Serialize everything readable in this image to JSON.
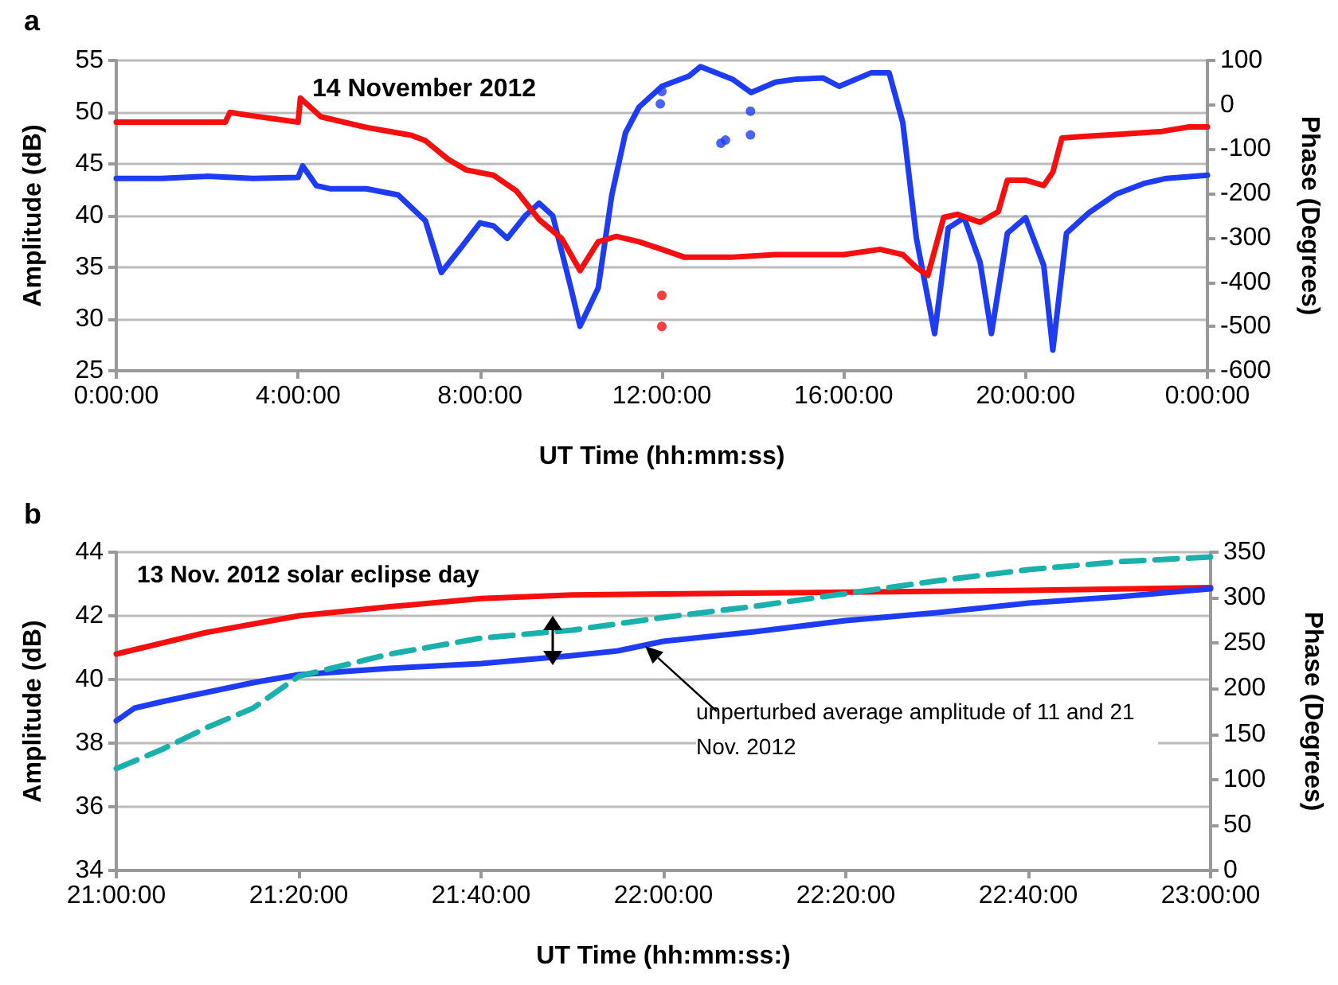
{
  "chart_data": [
    {
      "type": "line",
      "title": "a",
      "annotations": [
        "14 November 2012"
      ],
      "xlabel": "UT Time (hh:mm:ss)",
      "ylabel": "Amplitude (dB)",
      "y2label": "Phase (Degrees)",
      "grid": "y",
      "marker": "none",
      "line_style": "solid",
      "xlim": [
        "2012-11-14T00:00",
        "2012-11-15T00:00"
      ],
      "xticks": [
        {
          "value": "2012-11-14T00:00",
          "label": "0:00:00"
        },
        {
          "value": "2012-11-14T04:00",
          "label": "4:00:00"
        },
        {
          "value": "2012-11-14T08:00",
          "label": "8:00:00"
        },
        {
          "value": "2012-11-14T12:00",
          "label": "12:00:00"
        },
        {
          "value": "2012-11-14T16:00",
          "label": "16:00:00"
        },
        {
          "value": "2012-11-14T20:00",
          "label": "20:00:00"
        },
        {
          "value": "2012-11-15T00:00",
          "label": "0:00:00"
        }
      ],
      "ylim": [
        25,
        55
      ],
      "yticks": [
        25,
        30,
        35,
        40,
        45,
        50,
        55
      ],
      "y2lim": [
        -600,
        100
      ],
      "y2ticks": [
        -600,
        -500,
        -400,
        -300,
        -200,
        -100,
        0,
        100
      ],
      "series": [
        {
          "color": "#1f3cf5",
          "x": [
            "2012-11-14T00:00",
            "2012-11-14T01:00",
            "2012-11-14T02:00",
            "2012-11-14T03:00",
            "2012-11-14T04:00",
            "2012-11-14T04:06",
            "2012-11-14T04:24",
            "2012-11-14T04:42",
            "2012-11-14T05:30",
            "2012-11-14T06:12",
            "2012-11-14T06:48",
            "2012-11-14T07:09",
            "2012-11-14T07:36",
            "2012-11-14T08:00",
            "2012-11-14T08:18",
            "2012-11-14T08:36",
            "2012-11-14T09:00",
            "2012-11-14T09:18",
            "2012-11-14T09:36",
            "2012-11-14T10:00",
            "2012-11-14T10:12",
            "2012-11-14T10:36",
            "2012-11-14T10:54",
            "2012-11-14T11:12",
            "2012-11-14T11:30",
            "2012-11-14T12:00",
            "2012-11-14T12:36",
            "2012-11-14T12:51",
            "2012-11-14T13:33",
            "2012-11-14T13:58",
            "2012-11-14T14:30",
            "2012-11-14T14:58",
            "2012-11-14T15:33",
            "2012-11-14T15:54",
            "2012-11-14T16:36",
            "2012-11-14T17:00",
            "2012-11-14T17:18",
            "2012-11-14T17:36",
            "2012-11-14T18:00",
            "2012-11-14T18:18",
            "2012-11-14T18:39",
            "2012-11-14T19:00",
            "2012-11-14T19:15",
            "2012-11-14T19:36",
            "2012-11-14T20:00",
            "2012-11-14T20:24",
            "2012-11-14T20:36",
            "2012-11-14T20:54",
            "2012-11-14T21:24",
            "2012-11-14T22:00",
            "2012-11-14T22:36",
            "2012-11-14T23:06",
            "2012-11-15T00:00"
          ],
          "values": [
            43.6,
            43.6,
            43.8,
            43.6,
            43.7,
            44.8,
            42.9,
            42.6,
            42.6,
            42,
            39.5,
            34.5,
            37,
            39.3,
            39,
            37.8,
            40,
            41.2,
            40,
            33,
            29.3,
            33,
            42,
            48,
            50.5,
            52.5,
            53.5,
            54.4,
            53.2,
            51.9,
            52.9,
            53.2,
            53.3,
            52.5,
            53.8,
            53.8,
            49,
            37.8,
            28.6,
            38.8,
            39.8,
            35.5,
            28.6,
            38.3,
            39.8,
            35.2,
            27,
            38.3,
            40.3,
            42.1,
            43.1,
            43.6,
            43.9
          ]
        },
        {
          "color": "#f50f0f",
          "axis": "y2",
          "x": [
            "2012-11-14T00:00",
            "2012-11-14T01:00",
            "2012-11-14T02:24",
            "2012-11-14T02:30",
            "2012-11-14T03:00",
            "2012-11-14T04:00",
            "2012-11-14T04:03",
            "2012-11-14T04:30",
            "2012-11-14T05:30",
            "2012-11-14T06:30",
            "2012-11-14T06:48",
            "2012-11-14T07:18",
            "2012-11-14T07:42",
            "2012-11-14T08:18",
            "2012-11-14T08:48",
            "2012-11-14T09:18",
            "2012-11-14T09:48",
            "2012-11-14T10:12",
            "2012-11-14T10:36",
            "2012-11-14T11:00",
            "2012-11-14T11:30",
            "2012-11-14T12:00",
            "2012-11-14T12:30",
            "2012-11-14T13:30",
            "2012-11-14T14:30",
            "2012-11-14T16:00",
            "2012-11-14T16:48",
            "2012-11-14T17:18",
            "2012-11-14T17:36",
            "2012-11-14T17:51",
            "2012-11-14T18:12",
            "2012-11-14T18:30",
            "2012-11-14T19:00",
            "2012-11-14T19:24",
            "2012-11-14T19:36",
            "2012-11-14T20:00",
            "2012-11-14T20:24",
            "2012-11-14T20:36",
            "2012-11-14T20:48",
            "2012-11-14T21:12",
            "2012-11-14T22:00",
            "2012-11-14T23:00",
            "2012-11-14T23:36",
            "2012-11-15T00:00"
          ],
          "values": [
            -39,
            -39,
            -39,
            -17,
            -25,
            -39,
            15,
            -27,
            -51,
            -69,
            -81,
            -123,
            -147,
            -159,
            -194,
            -259,
            -302,
            -374,
            -309,
            -297,
            -309,
            -326,
            -344,
            -344,
            -338,
            -338,
            -326,
            -338,
            -367,
            -385,
            -254,
            -247,
            -265,
            -241,
            -170,
            -170,
            -182,
            -152,
            -75,
            -72,
            -67,
            -60,
            -50,
            -50
          ]
        },
        {
          "type": "scatter",
          "marker": "circle",
          "color": "#1f3cf5",
          "x": [
            "2012-11-14T11:58",
            "2012-11-14T12:00",
            "2012-11-14T13:18",
            "2012-11-14T13:24",
            "2012-11-14T13:57",
            "2012-11-14T13:57"
          ],
          "values": [
            50.8,
            52,
            47,
            47.3,
            50.1,
            47.8
          ]
        },
        {
          "type": "scatter",
          "marker": "circle",
          "color": "#f50f0f",
          "axis": "y2",
          "x": [
            "2012-11-14T12:00",
            "2012-11-14T12:00"
          ],
          "values": [
            -430,
            -500
          ]
        }
      ]
    },
    {
      "type": "line",
      "title": "b",
      "annotations": [
        "13 Nov. 2012 solar eclipse day",
        "unperturbed average amplitude of 11 and 21 Nov. 2012"
      ],
      "xlabel": "UT Time (hh:mm:ss:)",
      "ylabel": "Amplitude (dB)",
      "y2label": "Phase (Degrees)",
      "grid": "y",
      "marker": "none",
      "xlim": [
        21,
        23
      ],
      "xticks": [
        {
          "value": 21,
          "label": "21:00:00"
        },
        {
          "value": 21.3333,
          "label": "21:20:00"
        },
        {
          "value": 21.6667,
          "label": "21:40:00"
        },
        {
          "value": 22,
          "label": "22:00:00"
        },
        {
          "value": 22.3333,
          "label": "22:20:00"
        },
        {
          "value": 22.6667,
          "label": "22:40:00"
        },
        {
          "value": 23,
          "label": "23:00:00"
        }
      ],
      "ylim": [
        34,
        44
      ],
      "yticks": [
        34,
        36,
        38,
        40,
        42,
        44
      ],
      "y2lim": [
        0,
        350
      ],
      "y2ticks": [
        0,
        50,
        100,
        150,
        200,
        250,
        300,
        350
      ],
      "series": [
        {
          "color": "#f50f0f",
          "axis": "y2",
          "line_style": "solid",
          "x": [
            21,
            21.1667,
            21.3333,
            21.5,
            21.6667,
            21.8333,
            22,
            22.3333,
            22.6667,
            23
          ],
          "values": [
            238,
            262,
            280,
            290,
            299,
            303,
            304,
            306,
            308,
            311
          ]
        },
        {
          "color": "#1f3cf5",
          "line_style": "solid",
          "x": [
            21,
            21.0333,
            21.0833,
            21.1667,
            21.25,
            21.3333,
            21.5,
            21.6667,
            21.8333,
            21.9167,
            22,
            22.1667,
            22.3333,
            22.5,
            22.6667,
            22.8333,
            23
          ],
          "values": [
            38.7,
            39.1,
            39.3,
            39.6,
            39.9,
            40.15,
            40.35,
            40.5,
            40.75,
            40.9,
            41.2,
            41.5,
            41.85,
            42.1,
            42.4,
            42.6,
            42.85
          ]
        },
        {
          "color": "#1ab0ab",
          "line_style": "dashed",
          "x": [
            21,
            21.0833,
            21.1667,
            21.25,
            21.3333,
            21.5,
            21.6667,
            21.8333,
            22,
            22.1667,
            22.3333,
            22.5,
            22.6667,
            22.8333,
            23
          ],
          "values": [
            37.2,
            37.8,
            38.5,
            39.1,
            40.1,
            40.8,
            41.3,
            41.55,
            41.95,
            42.3,
            42.7,
            43.1,
            43.45,
            43.7,
            43.85
          ]
        }
      ]
    }
  ]
}
